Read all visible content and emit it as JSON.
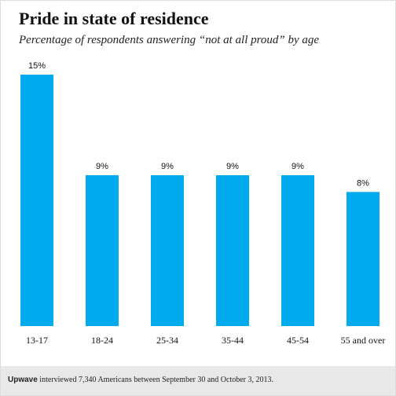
{
  "chart_data": {
    "type": "bar",
    "title": "Pride in state of residence",
    "subtitle": "Percentage of respondents answering “not at all proud” by age",
    "categories": [
      "13-17",
      "18-24",
      "25-34",
      "35-44",
      "45-54",
      "55 and over"
    ],
    "values": [
      15,
      9,
      9,
      9,
      9,
      8
    ],
    "data_labels": [
      "15%",
      "9%",
      "9%",
      "9%",
      "9%",
      "8%"
    ],
    "xlabel": "",
    "ylabel": "",
    "ylim": [
      0,
      15
    ],
    "grid": false,
    "legend": "none",
    "colors": {
      "bar": "#00aaee"
    }
  },
  "footer": {
    "brand": "Upwave",
    "note": "interviewed 7,340 Americans between September 30 and October 3, 2013."
  }
}
